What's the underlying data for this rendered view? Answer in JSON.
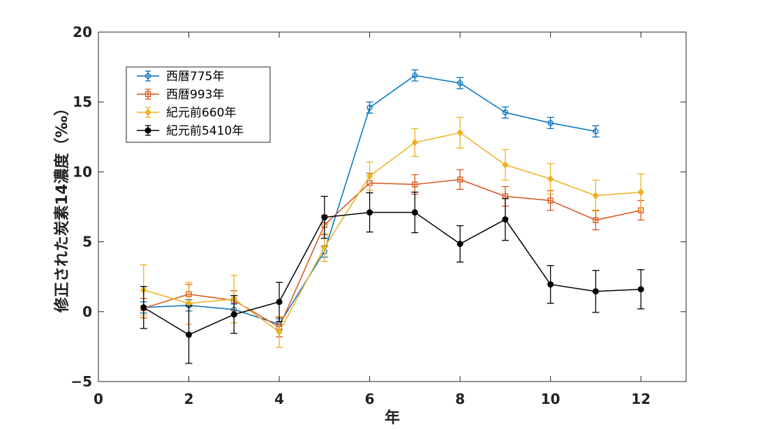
{
  "chart_data": {
    "type": "line",
    "xlabel": "年",
    "ylabel": "修正された炭素14濃度（‰）",
    "xlim": [
      0,
      13
    ],
    "ylim": [
      -5,
      20
    ],
    "xticks": [
      0,
      2,
      4,
      6,
      8,
      10,
      12
    ],
    "xtick_labels": [
      "0",
      "2",
      "4",
      "6",
      "8",
      "10",
      "12"
    ],
    "yticks": [
      -5,
      0,
      5,
      10,
      15,
      20
    ],
    "ytick_labels": [
      "−5",
      "0",
      "5",
      "10",
      "15",
      "20"
    ],
    "grid": false,
    "legend_position": "top-left",
    "series": [
      {
        "name": "西暦775年",
        "color": "#0072BD",
        "marker": "circle",
        "x": [
          1,
          2,
          3,
          4,
          5,
          6,
          7,
          8,
          9,
          10,
          11
        ],
        "y": [
          0.3,
          0.45,
          0.15,
          -0.9,
          4.3,
          14.6,
          16.9,
          16.35,
          14.25,
          13.5,
          12.9
        ],
        "err": [
          0.4,
          0.4,
          0.4,
          0.4,
          0.4,
          0.4,
          0.4,
          0.4,
          0.4,
          0.4,
          0.4
        ]
      },
      {
        "name": "西暦993年",
        "color": "#D95319",
        "marker": "square",
        "x": [
          1,
          2,
          3,
          4,
          5,
          6,
          7,
          8,
          9,
          10,
          11,
          12
        ],
        "y": [
          0.25,
          1.25,
          0.8,
          -1.1,
          6.2,
          9.2,
          9.1,
          9.45,
          8.25,
          7.95,
          6.55,
          7.25
        ],
        "err": [
          0.7,
          0.7,
          0.7,
          0.7,
          0.7,
          0.7,
          0.7,
          0.7,
          0.7,
          0.7,
          0.7,
          0.7
        ]
      },
      {
        "name": "紀元前660年",
        "color": "#EDB120",
        "marker": "diamond",
        "x": [
          1,
          2,
          3,
          4,
          5,
          6,
          7,
          8,
          9,
          10,
          11,
          12
        ],
        "y": [
          1.55,
          0.6,
          0.9,
          -1.45,
          4.6,
          9.7,
          12.1,
          12.8,
          10.5,
          9.5,
          8.3,
          8.55
        ],
        "err": [
          1.8,
          1.5,
          1.7,
          1.1,
          1.0,
          1.0,
          1.0,
          1.1,
          1.1,
          1.1,
          1.1,
          1.3
        ]
      },
      {
        "name": "紀元前5410年",
        "color": "#000000",
        "marker": "dot",
        "x": [
          1,
          2,
          3,
          4,
          5,
          6,
          7,
          8,
          9,
          10,
          11,
          12
        ],
        "y": [
          0.3,
          -1.65,
          -0.2,
          0.7,
          6.75,
          7.1,
          7.1,
          4.85,
          6.6,
          1.95,
          1.45,
          1.6
        ],
        "err": [
          1.5,
          2.05,
          1.35,
          1.4,
          1.5,
          1.4,
          1.45,
          1.3,
          1.5,
          1.35,
          1.5,
          1.4
        ]
      }
    ]
  }
}
